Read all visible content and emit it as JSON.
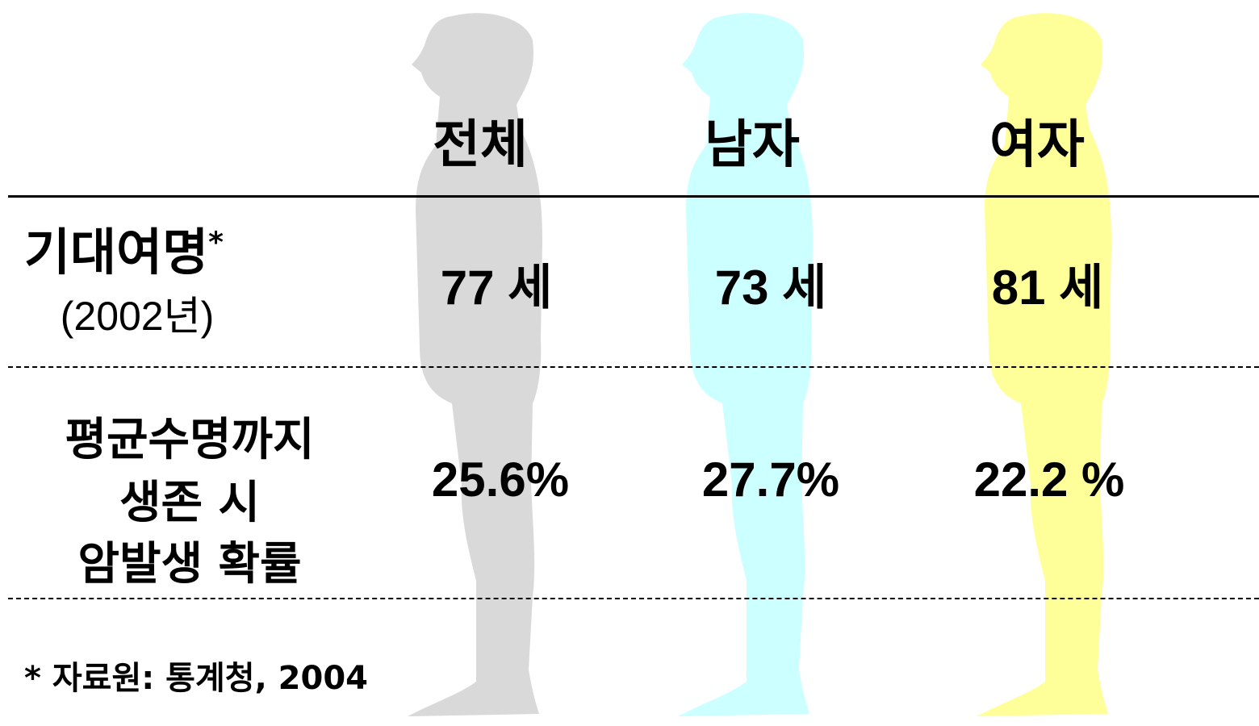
{
  "table": {
    "columns": [
      "전체",
      "남자",
      "여자"
    ],
    "rows": [
      {
        "label": [
          "기대여명",
          "*",
          "(2002년)"
        ],
        "cells": [
          "77 세",
          "73 세",
          "81 세"
        ]
      },
      {
        "label": [
          "평균수명까지",
          "생존 시",
          "암발생 확률"
        ],
        "cells": [
          "25.6%",
          "27.7%",
          "22.2 %"
        ]
      }
    ]
  },
  "footnote": "* 자료원: 통계청, 2004"
}
